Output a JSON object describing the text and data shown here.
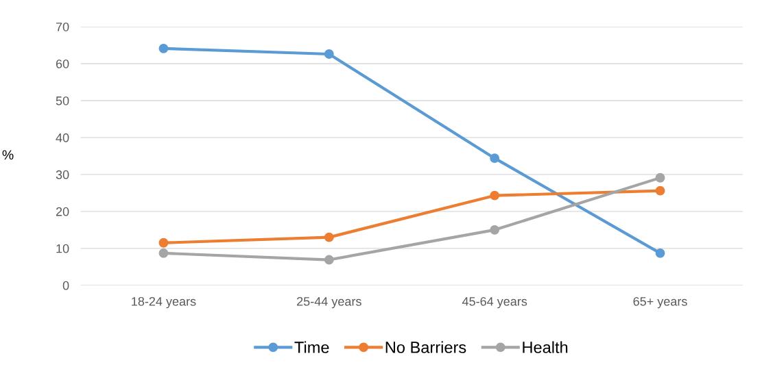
{
  "chart_data": {
    "type": "line",
    "ylabel": "%",
    "categories": [
      "18-24 years",
      "25-44 years",
      "45-64 years",
      "65+ years"
    ],
    "series": [
      {
        "name": "Time",
        "color": "#5b9bd5",
        "values": [
          64.1,
          62.6,
          34.4,
          8.7
        ]
      },
      {
        "name": "No Barriers",
        "color": "#ed7d31",
        "values": [
          11.5,
          13.0,
          24.3,
          25.6
        ]
      },
      {
        "name": "Health",
        "color": "#a5a5a5",
        "values": [
          8.7,
          6.9,
          15.0,
          29.1
        ]
      }
    ],
    "ylim": [
      0,
      70
    ],
    "yticks": [
      0,
      10,
      20,
      30,
      40,
      50,
      60,
      70
    ],
    "grid": "y",
    "legend": "bottom",
    "marker": "circle",
    "line_style": "solid"
  }
}
